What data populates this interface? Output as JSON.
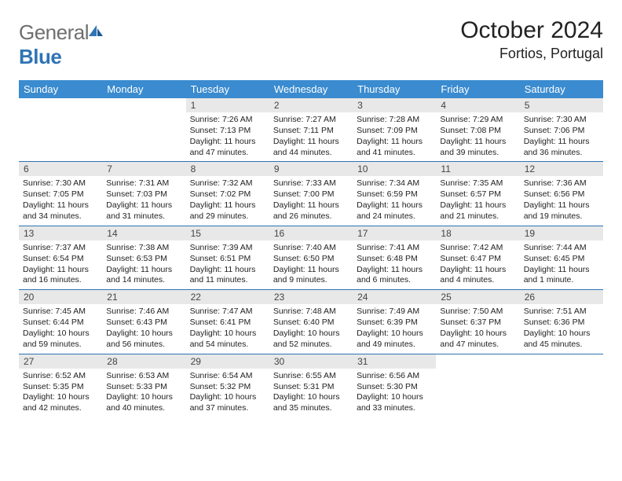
{
  "brand": {
    "part1": "General",
    "part2": "Blue"
  },
  "title": "October 2024",
  "location": "Fortios, Portugal",
  "colors": {
    "header_bg": "#3a8bcf",
    "rule": "#2f74b5",
    "daynum_bg": "#e8e8e8",
    "brand_gray": "#6f6f6f",
    "brand_blue": "#2f74b5"
  },
  "day_headers": [
    "Sunday",
    "Monday",
    "Tuesday",
    "Wednesday",
    "Thursday",
    "Friday",
    "Saturday"
  ],
  "weeks": [
    [
      null,
      null,
      {
        "n": "1",
        "sr": "7:26 AM",
        "ss": "7:13 PM",
        "dl": "11 hours and 47 minutes."
      },
      {
        "n": "2",
        "sr": "7:27 AM",
        "ss": "7:11 PM",
        "dl": "11 hours and 44 minutes."
      },
      {
        "n": "3",
        "sr": "7:28 AM",
        "ss": "7:09 PM",
        "dl": "11 hours and 41 minutes."
      },
      {
        "n": "4",
        "sr": "7:29 AM",
        "ss": "7:08 PM",
        "dl": "11 hours and 39 minutes."
      },
      {
        "n": "5",
        "sr": "7:30 AM",
        "ss": "7:06 PM",
        "dl": "11 hours and 36 minutes."
      }
    ],
    [
      {
        "n": "6",
        "sr": "7:30 AM",
        "ss": "7:05 PM",
        "dl": "11 hours and 34 minutes."
      },
      {
        "n": "7",
        "sr": "7:31 AM",
        "ss": "7:03 PM",
        "dl": "11 hours and 31 minutes."
      },
      {
        "n": "8",
        "sr": "7:32 AM",
        "ss": "7:02 PM",
        "dl": "11 hours and 29 minutes."
      },
      {
        "n": "9",
        "sr": "7:33 AM",
        "ss": "7:00 PM",
        "dl": "11 hours and 26 minutes."
      },
      {
        "n": "10",
        "sr": "7:34 AM",
        "ss": "6:59 PM",
        "dl": "11 hours and 24 minutes."
      },
      {
        "n": "11",
        "sr": "7:35 AM",
        "ss": "6:57 PM",
        "dl": "11 hours and 21 minutes."
      },
      {
        "n": "12",
        "sr": "7:36 AM",
        "ss": "6:56 PM",
        "dl": "11 hours and 19 minutes."
      }
    ],
    [
      {
        "n": "13",
        "sr": "7:37 AM",
        "ss": "6:54 PM",
        "dl": "11 hours and 16 minutes."
      },
      {
        "n": "14",
        "sr": "7:38 AM",
        "ss": "6:53 PM",
        "dl": "11 hours and 14 minutes."
      },
      {
        "n": "15",
        "sr": "7:39 AM",
        "ss": "6:51 PM",
        "dl": "11 hours and 11 minutes."
      },
      {
        "n": "16",
        "sr": "7:40 AM",
        "ss": "6:50 PM",
        "dl": "11 hours and 9 minutes."
      },
      {
        "n": "17",
        "sr": "7:41 AM",
        "ss": "6:48 PM",
        "dl": "11 hours and 6 minutes."
      },
      {
        "n": "18",
        "sr": "7:42 AM",
        "ss": "6:47 PM",
        "dl": "11 hours and 4 minutes."
      },
      {
        "n": "19",
        "sr": "7:44 AM",
        "ss": "6:45 PM",
        "dl": "11 hours and 1 minute."
      }
    ],
    [
      {
        "n": "20",
        "sr": "7:45 AM",
        "ss": "6:44 PM",
        "dl": "10 hours and 59 minutes."
      },
      {
        "n": "21",
        "sr": "7:46 AM",
        "ss": "6:43 PM",
        "dl": "10 hours and 56 minutes."
      },
      {
        "n": "22",
        "sr": "7:47 AM",
        "ss": "6:41 PM",
        "dl": "10 hours and 54 minutes."
      },
      {
        "n": "23",
        "sr": "7:48 AM",
        "ss": "6:40 PM",
        "dl": "10 hours and 52 minutes."
      },
      {
        "n": "24",
        "sr": "7:49 AM",
        "ss": "6:39 PM",
        "dl": "10 hours and 49 minutes."
      },
      {
        "n": "25",
        "sr": "7:50 AM",
        "ss": "6:37 PM",
        "dl": "10 hours and 47 minutes."
      },
      {
        "n": "26",
        "sr": "7:51 AM",
        "ss": "6:36 PM",
        "dl": "10 hours and 45 minutes."
      }
    ],
    [
      {
        "n": "27",
        "sr": "6:52 AM",
        "ss": "5:35 PM",
        "dl": "10 hours and 42 minutes."
      },
      {
        "n": "28",
        "sr": "6:53 AM",
        "ss": "5:33 PM",
        "dl": "10 hours and 40 minutes."
      },
      {
        "n": "29",
        "sr": "6:54 AM",
        "ss": "5:32 PM",
        "dl": "10 hours and 37 minutes."
      },
      {
        "n": "30",
        "sr": "6:55 AM",
        "ss": "5:31 PM",
        "dl": "10 hours and 35 minutes."
      },
      {
        "n": "31",
        "sr": "6:56 AM",
        "ss": "5:30 PM",
        "dl": "10 hours and 33 minutes."
      },
      null,
      null
    ]
  ],
  "labels": {
    "sunrise": "Sunrise:",
    "sunset": "Sunset:",
    "daylight": "Daylight:"
  }
}
